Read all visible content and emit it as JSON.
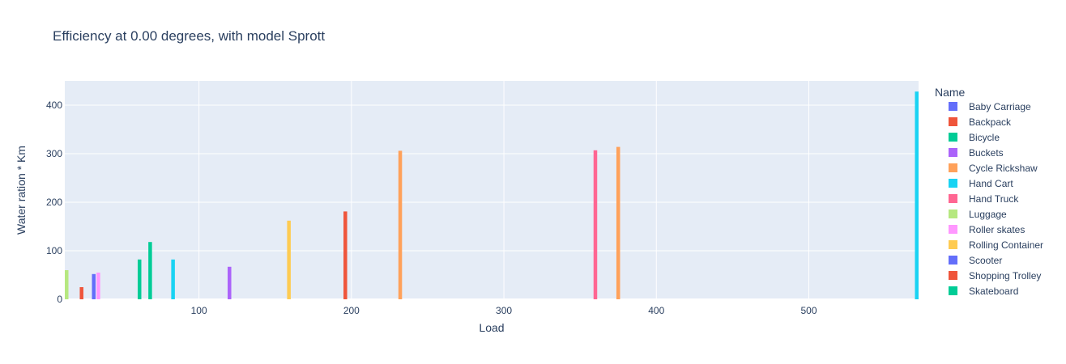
{
  "chart_data": {
    "type": "bar",
    "title": "Efficiency at 0.00 degrees, with model Sprott",
    "xlabel": "Load",
    "ylabel": "Water ration * Km",
    "xlim": [
      12,
      572
    ],
    "ylim": [
      0,
      450
    ],
    "x_ticks": [
      100,
      200,
      300,
      400,
      500
    ],
    "y_ticks": [
      0,
      100,
      200,
      300,
      400
    ],
    "grid": true,
    "legend_title": "Name",
    "legend_position": "right",
    "series": [
      {
        "name": "Baby Carriage",
        "color": "#636efa",
        "points": [
          {
            "x": 13,
            "y": 20
          }
        ]
      },
      {
        "name": "Backpack",
        "color": "#EF553B",
        "points": [
          {
            "x": 23,
            "y": 25
          }
        ]
      },
      {
        "name": "Bicycle",
        "color": "#00cc96",
        "points": [
          {
            "x": 61,
            "y": 82
          },
          {
            "x": 68,
            "y": 118
          }
        ]
      },
      {
        "name": "Buckets",
        "color": "#ab63fa",
        "points": [
          {
            "x": 13,
            "y": 38
          },
          {
            "x": 120,
            "y": 67
          }
        ]
      },
      {
        "name": "Cycle Rickshaw",
        "color": "#FFA15A",
        "points": [
          {
            "x": 232,
            "y": 306
          },
          {
            "x": 375,
            "y": 314
          }
        ]
      },
      {
        "name": "Hand Cart",
        "color": "#19d3f3",
        "points": [
          {
            "x": 83,
            "y": 82
          },
          {
            "x": 571,
            "y": 428
          }
        ]
      },
      {
        "name": "Hand Truck",
        "color": "#FF6692",
        "points": [
          {
            "x": 360,
            "y": 307
          }
        ]
      },
      {
        "name": "Luggage",
        "color": "#B6E880",
        "points": [
          {
            "x": 13,
            "y": 60
          }
        ]
      },
      {
        "name": "Roller skates",
        "color": "#FF97FF",
        "points": [
          {
            "x": 34,
            "y": 55
          }
        ]
      },
      {
        "name": "Rolling Container",
        "color": "#FECB52",
        "points": [
          {
            "x": 159,
            "y": 162
          }
        ]
      },
      {
        "name": "Scooter",
        "color": "#636efa",
        "points": [
          {
            "x": 31,
            "y": 52
          }
        ]
      },
      {
        "name": "Shopping Trolley",
        "color": "#EF553B",
        "points": [
          {
            "x": 196,
            "y": 181
          }
        ]
      },
      {
        "name": "Skateboard",
        "color": "#00cc96",
        "points": []
      }
    ]
  }
}
